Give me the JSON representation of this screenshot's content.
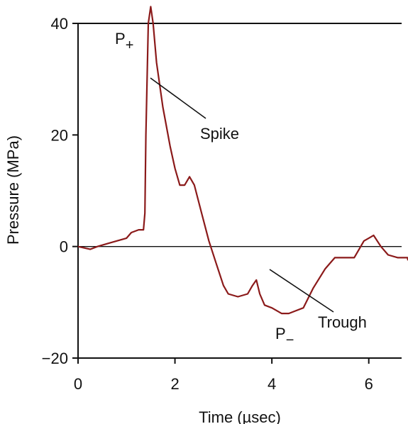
{
  "chart_data": {
    "type": "line",
    "title": "",
    "xlabel": "Time (µsec)",
    "ylabel": "Pressure (MPa)",
    "xlim": [
      0,
      7
    ],
    "ylim": [
      -20,
      40
    ],
    "xticks": [
      0,
      2,
      4,
      6
    ],
    "yticks": [
      -20,
      0,
      20,
      40
    ],
    "zero_line": true,
    "series": [
      {
        "color": "#8b1a1a",
        "x": [
          0,
          0.25,
          0.4,
          0.6,
          0.8,
          1.0,
          1.1,
          1.25,
          1.35,
          1.38,
          1.4,
          1.45,
          1.5,
          1.55,
          1.62,
          1.75,
          1.9,
          2.0,
          2.1,
          2.2,
          2.3,
          2.4,
          2.55,
          2.7,
          2.85,
          3.0,
          3.1,
          3.3,
          3.5,
          3.6,
          3.68,
          3.75,
          3.85,
          4.0,
          4.2,
          4.35,
          4.5,
          4.65,
          4.85,
          5.1,
          5.3,
          5.5,
          5.7,
          5.9,
          6.0,
          6.1,
          6.25,
          6.4,
          6.6,
          6.8,
          7.0
        ],
        "y": [
          0,
          -0.5,
          0,
          0.5,
          1,
          1.5,
          2.5,
          3,
          3,
          6,
          20,
          40,
          43,
          40,
          33,
          25,
          18,
          14,
          11,
          11,
          12.5,
          11,
          6,
          1,
          -3,
          -7,
          -8.5,
          -9,
          -8.5,
          -7,
          -6,
          -8.5,
          -10.5,
          -11,
          -12,
          -12,
          -11.5,
          -11,
          -7.5,
          -4,
          -2,
          -2,
          -2,
          1,
          1.5,
          2,
          0,
          -1.5,
          -2,
          -2,
          -2.5
        ]
      }
    ],
    "annotations": [
      {
        "text": "Spike",
        "sub": ""
      },
      {
        "text": "Trough",
        "sub": ""
      },
      {
        "text": "P",
        "sub": "+"
      },
      {
        "text": "P",
        "sub": "−"
      }
    ]
  }
}
